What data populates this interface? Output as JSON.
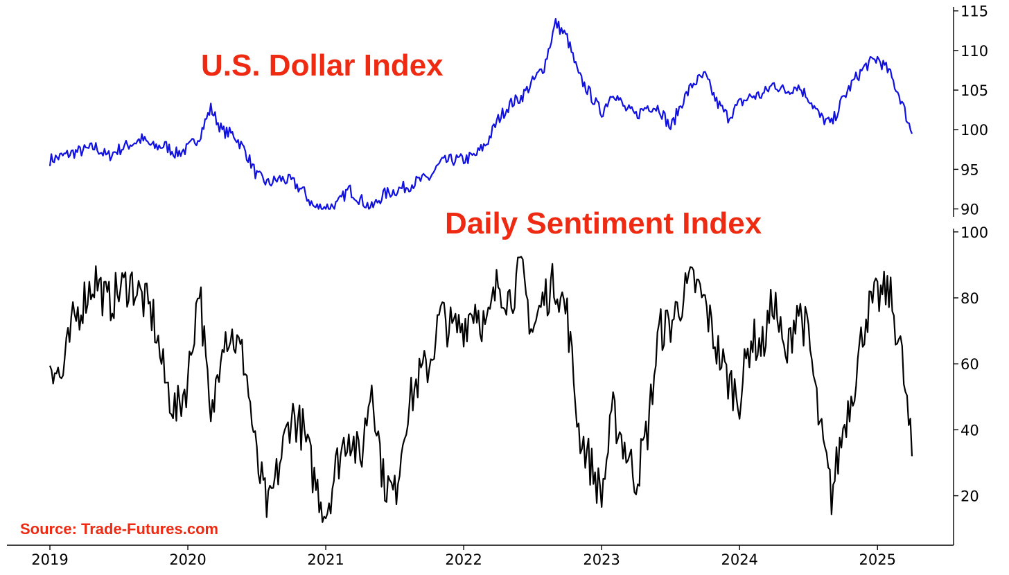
{
  "colors": {
    "background": "#ffffff",
    "title_red": "#ee2a12",
    "dollar_line": "#1010e0",
    "sentiment_line": "#000000",
    "axis": "#000000"
  },
  "source": "Source: Trade-Futures.com",
  "chart_data": [
    {
      "type": "line",
      "title": "U.S. Dollar Index",
      "xlabel": "",
      "ylabel": "",
      "y_axis_side": "right",
      "ylim": [
        89,
        115.5
      ],
      "yticks": [
        "90",
        "95",
        "100",
        "105",
        "110",
        "115"
      ],
      "grid": false,
      "series": [
        {
          "color": "#1010e0",
          "x": [
            "2019-01",
            "2019-02",
            "2019-03",
            "2019-04",
            "2019-05",
            "2019-06",
            "2019-07",
            "2019-08",
            "2019-09",
            "2019-10",
            "2019-11",
            "2019-12",
            "2020-01",
            "2020-02",
            "2020-03",
            "2020-04",
            "2020-05",
            "2020-06",
            "2020-07",
            "2020-08",
            "2020-09",
            "2020-10",
            "2020-11",
            "2020-12",
            "2021-01",
            "2021-02",
            "2021-03",
            "2021-04",
            "2021-05",
            "2021-06",
            "2021-07",
            "2021-08",
            "2021-09",
            "2021-10",
            "2021-11",
            "2021-12",
            "2022-01",
            "2022-02",
            "2022-03",
            "2022-04",
            "2022-05",
            "2022-06",
            "2022-07",
            "2022-08",
            "2022-09",
            "2022-10",
            "2022-11",
            "2022-12",
            "2023-01",
            "2023-02",
            "2023-03",
            "2023-04",
            "2023-05",
            "2023-06",
            "2023-07",
            "2023-08",
            "2023-09",
            "2023-10",
            "2023-11",
            "2023-12",
            "2024-01",
            "2024-02",
            "2024-03",
            "2024-04",
            "2024-05",
            "2024-06",
            "2024-07",
            "2024-08",
            "2024-09",
            "2024-10",
            "2024-11",
            "2024-12",
            "2025-01",
            "2025-02",
            "2025-03",
            "2025-04"
          ],
          "values": [
            96.2,
            96.6,
            97.1,
            97.4,
            97.8,
            96.6,
            97.5,
            98.2,
            98.8,
            97.8,
            98.0,
            97.0,
            97.6,
            99.2,
            102.7,
            99.8,
            99.4,
            97.3,
            94.2,
            93.2,
            93.8,
            93.5,
            92.3,
            90.2,
            90.2,
            90.5,
            92.5,
            91.2,
            90.1,
            91.8,
            92.3,
            92.8,
            93.5,
            93.9,
            95.8,
            96.2,
            96.2,
            96.7,
            98.3,
            101.3,
            103.2,
            104.1,
            106.0,
            108.0,
            113.5,
            111.6,
            106.8,
            104.5,
            102.1,
            104.9,
            102.7,
            101.8,
            103.0,
            102.8,
            100.2,
            103.5,
            105.9,
            106.8,
            103.5,
            101.6,
            103.3,
            104.2,
            104.4,
            105.8,
            104.8,
            105.6,
            104.1,
            101.6,
            100.7,
            103.9,
            106.3,
            108.1,
            109.0,
            107.3,
            104.0,
            99.5
          ]
        }
      ]
    },
    {
      "type": "line",
      "title": "Daily Sentiment Index",
      "xlabel": "",
      "ylabel": "",
      "y_axis_side": "right",
      "ylim": [
        5,
        101
      ],
      "yticks": [
        "20",
        "40",
        "60",
        "80",
        "100"
      ],
      "xticks": [
        "2019",
        "2020",
        "2021",
        "2022",
        "2023",
        "2024",
        "2025"
      ],
      "grid": false,
      "series": [
        {
          "color": "#000000",
          "x": [
            "2019-01",
            "2019-02",
            "2019-03",
            "2019-04",
            "2019-05",
            "2019-06",
            "2019-07",
            "2019-08",
            "2019-09",
            "2019-10",
            "2019-11",
            "2019-12",
            "2020-01",
            "2020-02",
            "2020-03",
            "2020-04",
            "2020-05",
            "2020-06",
            "2020-07",
            "2020-08",
            "2020-09",
            "2020-10",
            "2020-11",
            "2020-12",
            "2021-01",
            "2021-02",
            "2021-03",
            "2021-04",
            "2021-05",
            "2021-06",
            "2021-07",
            "2021-08",
            "2021-09",
            "2021-10",
            "2021-11",
            "2021-12",
            "2022-01",
            "2022-02",
            "2022-03",
            "2022-04",
            "2022-05",
            "2022-06",
            "2022-07",
            "2022-08",
            "2022-09",
            "2022-10",
            "2022-11",
            "2022-12",
            "2023-01",
            "2023-02",
            "2023-03",
            "2023-04",
            "2023-05",
            "2023-06",
            "2023-07",
            "2023-08",
            "2023-09",
            "2023-10",
            "2023-11",
            "2023-12",
            "2024-01",
            "2024-02",
            "2024-03",
            "2024-04",
            "2024-05",
            "2024-06",
            "2024-07",
            "2024-08",
            "2024-09",
            "2024-10",
            "2024-11",
            "2024-12",
            "2025-01",
            "2025-02",
            "2025-03",
            "2025-04"
          ],
          "values": [
            62,
            55,
            72,
            80,
            86,
            78,
            82,
            85,
            80,
            74,
            55,
            45,
            55,
            85,
            40,
            70,
            68,
            60,
            30,
            15,
            30,
            45,
            40,
            25,
            15,
            30,
            40,
            30,
            55,
            25,
            20,
            45,
            55,
            60,
            75,
            70,
            72,
            78,
            70,
            85,
            80,
            88,
            70,
            80,
            85,
            75,
            40,
            30,
            20,
            45,
            35,
            25,
            40,
            70,
            72,
            80,
            85,
            78,
            65,
            55,
            50,
            68,
            65,
            80,
            60,
            78,
            68,
            40,
            20,
            40,
            55,
            75,
            80,
            82,
            65,
            32
          ]
        }
      ]
    }
  ]
}
